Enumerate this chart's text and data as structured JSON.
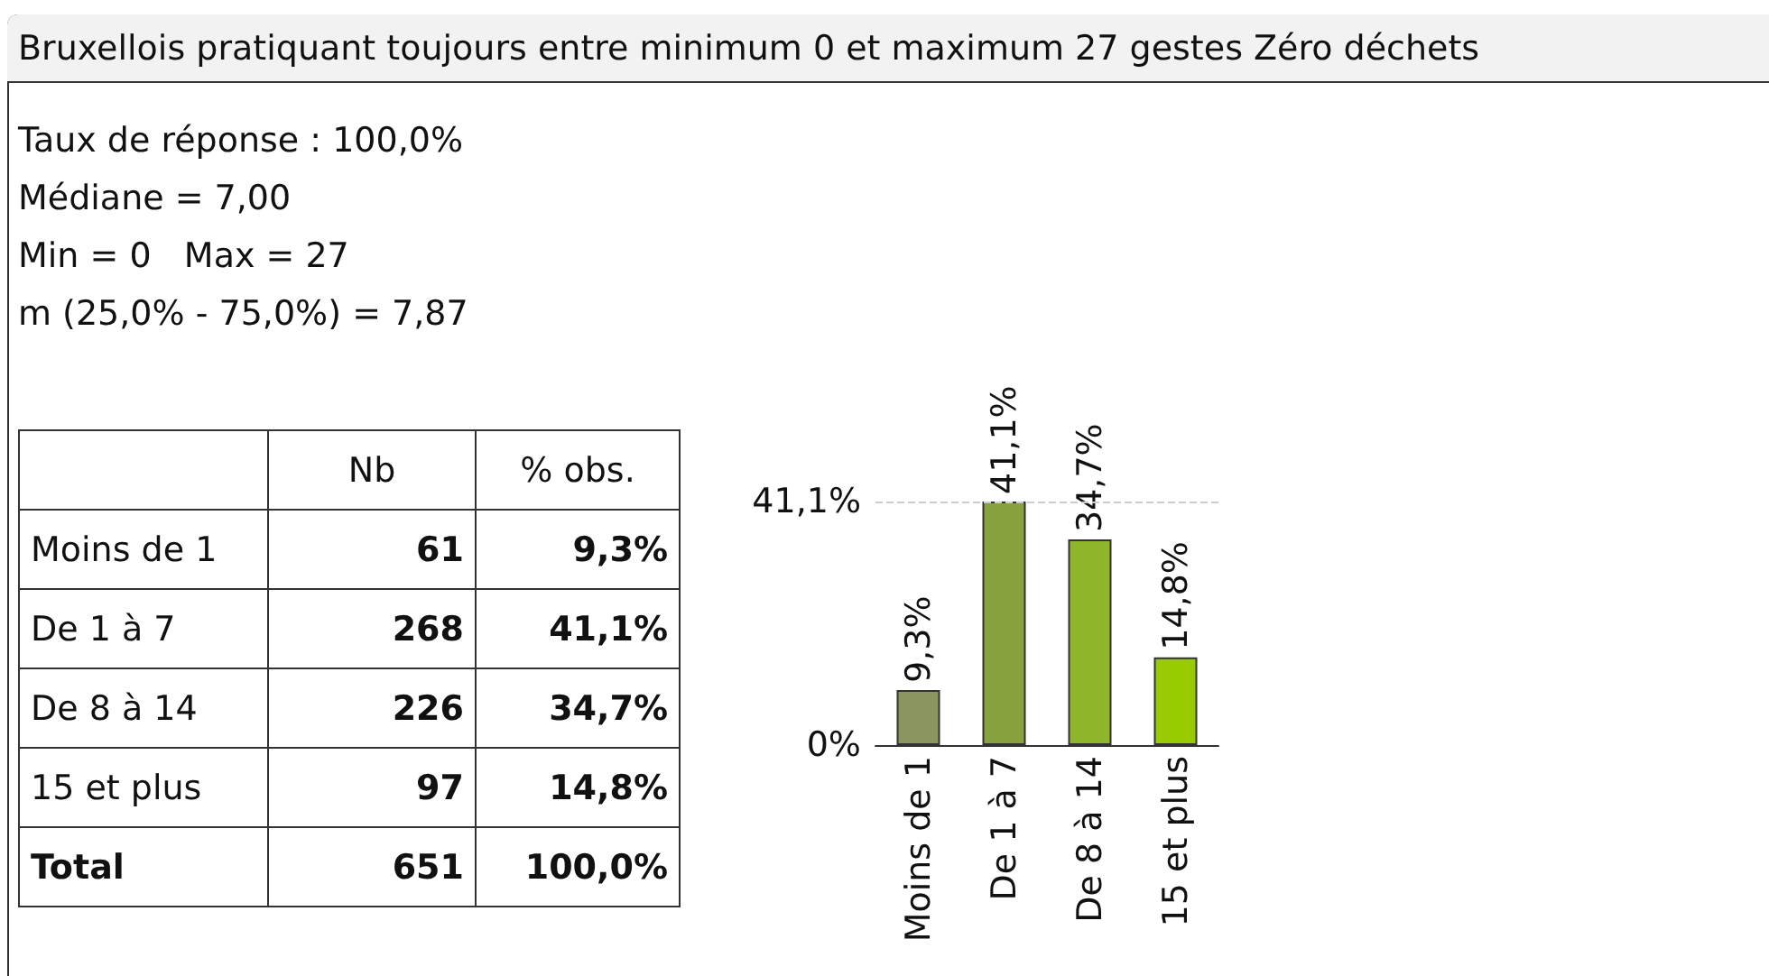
{
  "chart_data": [
    {
      "type": "other",
      "title": "Bruxellois pratiquant toujours entre minimum 0 et maximum 27 gestes Zéro déchets",
      "annotations": [
        "Taux de réponse : 100,0%",
        "Médiane = 7,00",
        "Min = 0   Max = 27",
        "m (25,0% - 75,0%) = 7,87"
      ],
      "categories": [
        "Moins de 1",
        "De 1 à 7",
        "De 8 à 14",
        "15 et plus",
        "Total"
      ],
      "data_labels": true,
      "series": [
        {
          "name": "Nb",
          "values": [
            61,
            268,
            226,
            97,
            651
          ]
        },
        {
          "name": "% obs.",
          "values": [
            9.3,
            41.1,
            34.7,
            14.8,
            100.0
          ],
          "value_labels": [
            "9,3%",
            "41,1%",
            "34,7%",
            "14,8%",
            "100,0%"
          ]
        }
      ]
    },
    {
      "type": "bar",
      "categories": [
        "Moins de 1",
        "De 1 à 7",
        "De 8 à 14",
        "15 et plus"
      ],
      "values": [
        9.3,
        41.1,
        34.7,
        14.8
      ],
      "colors": [
        "#8a9660",
        "#86a13d",
        "#8fb52a",
        "#99cc00"
      ],
      "value_labels": [
        "9,3%",
        "41,1%",
        "34,7%",
        "14,8%"
      ],
      "ylim": [
        0,
        41.1
      ],
      "yticks": [
        {
          "value": 0,
          "label": "0%"
        },
        {
          "value": 41.1,
          "label": "41,1%"
        }
      ],
      "ref_lines": [
        {
          "axis": "y",
          "value": 41.1,
          "color": "#cccccc",
          "line_style": "dashed"
        }
      ]
    }
  ]
}
